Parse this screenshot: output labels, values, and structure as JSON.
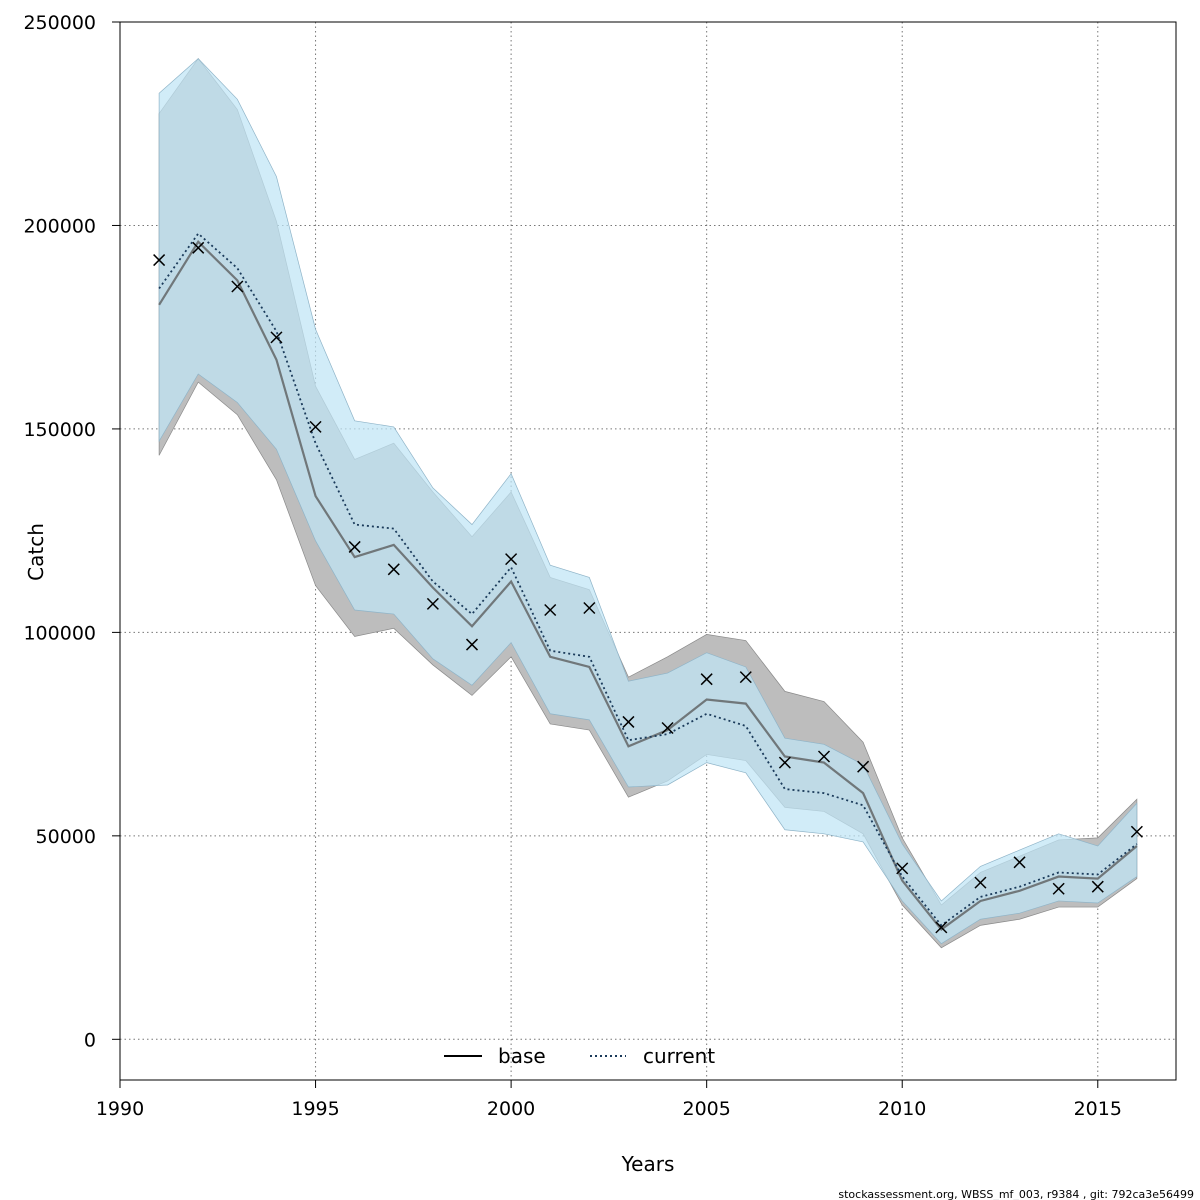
{
  "chart_data": {
    "type": "line",
    "xlabel": "Years",
    "ylabel": "Catch",
    "xlim": [
      1990,
      2017
    ],
    "ylim": [
      -10000,
      250000
    ],
    "xticks": [
      "1990",
      "1995",
      "2000",
      "2005",
      "2010",
      "2015"
    ],
    "yticks": [
      "0",
      "50000",
      "100000",
      "150000",
      "200000",
      "250000"
    ],
    "grid": true,
    "legend_position": "bottom-center",
    "x": [
      1991,
      1992,
      1993,
      1994,
      1995,
      1996,
      1997,
      1998,
      1999,
      2000,
      2001,
      2002,
      2003,
      2004,
      2005,
      2006,
      2007,
      2008,
      2009,
      2010,
      2011,
      2012,
      2013,
      2014,
      2015,
      2016
    ],
    "series": [
      {
        "name": "base",
        "line_style": "solid",
        "color": "#555555",
        "band_color": "#bdbdbd",
        "values": [
          180500,
          196000,
          186500,
          167000,
          133500,
          118500,
          121500,
          111000,
          101500,
          112500,
          94000,
          91500,
          72000,
          76000,
          83500,
          82500,
          69500,
          68000,
          60500,
          39000,
          27000,
          34000,
          36500,
          40000,
          39500,
          47500
        ],
        "lower": [
          143500,
          161500,
          153500,
          137500,
          111500,
          99000,
          101000,
          92000,
          84500,
          94000,
          77500,
          76000,
          59500,
          63500,
          70000,
          68500,
          57000,
          56000,
          50500,
          33000,
          22500,
          28000,
          29500,
          32500,
          32500,
          39500
        ],
        "upper": [
          227500,
          241000,
          228500,
          201000,
          160500,
          142500,
          146500,
          134500,
          123500,
          134500,
          113500,
          110500,
          89000,
          94000,
          99500,
          98000,
          85500,
          83000,
          73000,
          49500,
          33000,
          41000,
          45000,
          49000,
          49500,
          59000
        ]
      },
      {
        "name": "current",
        "line_style": "dotted",
        "color": "#1a3a5a",
        "band_color": "#bfe4f5",
        "values": [
          184500,
          198000,
          189500,
          174000,
          146500,
          126500,
          125500,
          112500,
          104500,
          116000,
          95500,
          94000,
          73500,
          75000,
          80000,
          77000,
          61500,
          60500,
          57500,
          40000,
          28000,
          35000,
          37500,
          41000,
          40500,
          48000
        ],
        "lower": [
          147000,
          163500,
          156500,
          145000,
          122500,
          105500,
          104500,
          93500,
          87000,
          97500,
          80000,
          78500,
          62000,
          62500,
          68000,
          65500,
          51500,
          50500,
          48500,
          34000,
          23500,
          29500,
          31000,
          34000,
          33500,
          40000
        ],
        "upper": [
          232500,
          241000,
          231000,
          212000,
          174500,
          152000,
          150500,
          135500,
          126500,
          139000,
          116500,
          113500,
          88000,
          90000,
          95000,
          91500,
          74000,
          72500,
          67500,
          48000,
          34000,
          42500,
          46500,
          50500,
          47500,
          58000
        ]
      },
      {
        "name": "",
        "type": "scatter",
        "marker": "x",
        "x": [
          1991,
          1992,
          1993,
          1994,
          1995,
          1996,
          1997,
          1998,
          1999,
          2000,
          2001,
          2002,
          2003,
          2004,
          2005,
          2006,
          2007,
          2008,
          2009,
          2010,
          2011,
          2012,
          2013,
          2014,
          2015,
          2016
        ],
        "values": [
          191500,
          194500,
          185000,
          172500,
          150500,
          121000,
          115500,
          107000,
          97000,
          118000,
          105500,
          106000,
          78000,
          76500,
          88500,
          89000,
          68000,
          69500,
          67000,
          42000,
          27500,
          38500,
          43500,
          37000,
          37500,
          51000
        ]
      }
    ],
    "legend": [
      {
        "label": "base",
        "line_style": "solid"
      },
      {
        "label": "current",
        "line_style": "dotted"
      }
    ]
  },
  "footer_text": "stockassessment.org, WBSS_mf_003, r9384 , git: 792ca3e56499"
}
